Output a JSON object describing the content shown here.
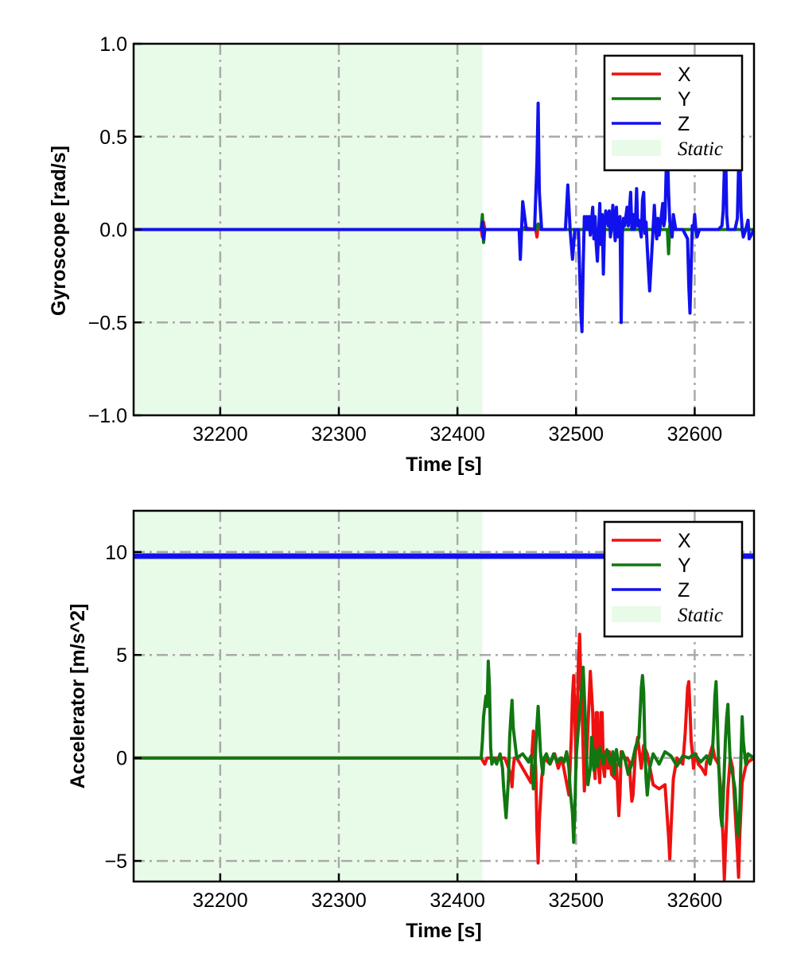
{
  "colors": {
    "x": "#ee1111",
    "y": "#117711",
    "z": "#1111ee",
    "static_region": "#e8fbe8",
    "grid": "#aaaaaa"
  },
  "chart_data": [
    {
      "type": "line",
      "xlabel": "Time [s]",
      "ylabel": "Gyroscope [rad/s]",
      "xlim": [
        32127,
        32650
      ],
      "ylim": [
        -1.0,
        1.0
      ],
      "xticks": [
        32200,
        32300,
        32400,
        32500,
        32600
      ],
      "xtick_labels": [
        "32200",
        "32300",
        "32400",
        "32500",
        "32600"
      ],
      "yticks": [
        1.0,
        0.5,
        0.0,
        -0.5,
        -1.0
      ],
      "ytick_labels": [
        "1.0",
        "0.5",
        "0.0",
        "−0.5",
        "−1.0"
      ],
      "grid": true,
      "legend": "top-right",
      "static_region": {
        "label": "Static",
        "x": [
          32127,
          32421
        ]
      },
      "series": [
        {
          "name": "X",
          "x": [
            32127,
            32420,
            32421,
            32422,
            32423,
            32455,
            32456,
            32466,
            32467,
            32468,
            32470,
            32495,
            32500,
            32505,
            32520,
            32540,
            32560,
            32580,
            32600,
            32625,
            32650
          ],
          "y": [
            0,
            0,
            -0.04,
            0.04,
            0,
            0,
            0.01,
            0,
            -0.04,
            0.02,
            0,
            0,
            0,
            0,
            0,
            0,
            0,
            0,
            0,
            0,
            0
          ]
        },
        {
          "name": "Y",
          "x": [
            32127,
            32420,
            32421,
            32422,
            32423,
            32455,
            32460,
            32466,
            32468,
            32470,
            32495,
            32520,
            32540,
            32560,
            32577,
            32578,
            32579,
            32580,
            32600,
            32625,
            32650
          ],
          "y": [
            0,
            0,
            0.08,
            -0.07,
            0,
            0,
            0,
            0,
            0.03,
            0,
            0,
            0,
            0,
            0,
            0,
            -0.13,
            0.02,
            0,
            0,
            0,
            0
          ]
        },
        {
          "name": "Z",
          "x": [
            32127,
            32420,
            32421,
            32422,
            32423,
            32452,
            32453,
            32455,
            32456,
            32458,
            32465,
            32467,
            32468,
            32469,
            32471,
            32491,
            32493,
            32495,
            32496,
            32497,
            32499,
            32502,
            32504,
            32505,
            32506,
            32507,
            32508,
            32509,
            32510,
            32511,
            32512,
            32514,
            32515,
            32516,
            32517,
            32518,
            32520,
            32521,
            32522,
            32523,
            32524,
            32525,
            32527,
            32528,
            32529,
            32530,
            32531,
            32532,
            32533,
            32534,
            32535,
            32536,
            32537,
            32538,
            32539,
            32540,
            32541,
            32543,
            32544,
            32546,
            32547,
            32548,
            32549,
            32550,
            32551,
            32552,
            32553,
            32554,
            32555,
            32556,
            32557,
            32558,
            32559,
            32560,
            32562,
            32565,
            32566,
            32567,
            32568,
            32569,
            32570,
            32571,
            32573,
            32574,
            32575,
            32576,
            32577,
            32578,
            32579,
            32580,
            32581,
            32582,
            32584,
            32590,
            32594,
            32595,
            32596,
            32597,
            32598,
            32599,
            32600,
            32601,
            32602,
            32604,
            32620,
            32623,
            32624,
            32625,
            32626,
            32627,
            32628,
            32630,
            32634,
            32636,
            32637,
            32638,
            32639,
            32640,
            32641,
            32643,
            32645,
            32646,
            32650
          ],
          "y": [
            0,
            0,
            0.04,
            -0.05,
            0,
            0,
            -0.16,
            0.15,
            0.1,
            0,
            0,
            0.36,
            0.68,
            0.2,
            0,
            0,
            0.24,
            0,
            -0.08,
            -0.16,
            0,
            0,
            -0.45,
            -0.55,
            -0.2,
            0.07,
            0,
            0.07,
            0,
            0.07,
            -0.03,
            0.12,
            -0.05,
            0.07,
            -0.08,
            -0.17,
            0.14,
            -0.08,
            0.08,
            -0.24,
            0.02,
            0.1,
            0.02,
            0.1,
            -0.04,
            0.02,
            0.13,
            0.02,
            -0.06,
            0.12,
            -0.04,
            -0.02,
            0.07,
            -0.5,
            -0.02,
            0.06,
            0.02,
            0.12,
            0.02,
            0.2,
            0,
            0.08,
            0,
            0.03,
            0.22,
            0.02,
            0.05,
            0,
            -0.04,
            0.16,
            0.2,
            -0.02,
            0.04,
            -0.1,
            -0.33,
            0.01,
            0.13,
            0.01,
            -0.05,
            0.06,
            -0.03,
            0.02,
            0.14,
            0.02,
            0.06,
            0.32,
            0.44,
            0.2,
            0.04,
            0.01,
            -0.04,
            0.08,
            0,
            0,
            -0.05,
            -0.3,
            -0.45,
            -0.2,
            0.02,
            0,
            0.08,
            0,
            -0.04,
            0,
            0,
            0.02,
            0.1,
            0.32,
            0.46,
            0.08,
            0,
            0,
            0,
            0.06,
            0.33,
            0.46,
            0.1,
            0,
            -0.04,
            0,
            0.05,
            -0.05,
            0
          ]
        }
      ]
    },
    {
      "type": "line",
      "xlabel": "Time [s]",
      "ylabel": "Accelerator [m/s^2]",
      "xlim": [
        32127,
        32650
      ],
      "ylim": [
        -6.0,
        12.0
      ],
      "xticks": [
        32200,
        32300,
        32400,
        32500,
        32600
      ],
      "xtick_labels": [
        "32200",
        "32300",
        "32400",
        "32500",
        "32600"
      ],
      "yticks": [
        10,
        5,
        0,
        -5
      ],
      "ytick_labels": [
        "10",
        "5",
        "0",
        "−5"
      ],
      "grid": true,
      "legend": "top-right",
      "static_region": {
        "label": "Static",
        "x": [
          32127,
          32421
        ]
      },
      "series": [
        {
          "name": "X",
          "x": [
            32127,
            32420,
            32423,
            32425,
            32440,
            32445,
            32446,
            32447,
            32448,
            32450,
            32462,
            32463,
            32464,
            32466,
            32467,
            32468,
            32469,
            32471,
            32473,
            32478,
            32482,
            32485,
            32488,
            32494,
            32496,
            32497,
            32498,
            32499,
            32500,
            32501,
            32502,
            32503,
            32504,
            32505,
            32506,
            32507,
            32508,
            32509,
            32510,
            32512,
            32514,
            32515,
            32516,
            32517,
            32518,
            32519,
            32520,
            32521,
            32522,
            32523,
            32524,
            32525,
            32526,
            32527,
            32528,
            32530,
            32533,
            32534,
            32535,
            32536,
            32537,
            32538,
            32540,
            32543,
            32545,
            32546,
            32547,
            32548,
            32549,
            32550,
            32552,
            32555,
            32557,
            32560,
            32565,
            32570,
            32575,
            32578,
            32579,
            32580,
            32582,
            32585,
            32590,
            32592,
            32594,
            32595,
            32596,
            32597,
            32598,
            32599,
            32600,
            32601,
            32603,
            32606,
            32609,
            32610,
            32612,
            32615,
            32617,
            32620,
            32622,
            32624,
            32625,
            32626,
            32628,
            32630,
            32632,
            32634,
            32636,
            32637,
            32638,
            32640,
            32643,
            32645,
            32650
          ],
          "y": [
            0,
            0,
            -0.3,
            0,
            0,
            -0.8,
            -1.4,
            -0.5,
            0,
            0,
            -1.2,
            0.4,
            1.3,
            -0.5,
            -3.5,
            -5.1,
            -3.1,
            -1.0,
            0,
            -0.3,
            0.2,
            -0.5,
            0,
            -1.8,
            1.0,
            3.0,
            4.0,
            2.0,
            -0.5,
            2.2,
            4.7,
            6.0,
            3.5,
            2.5,
            0.4,
            -1.6,
            -0.5,
            0,
            1.5,
            4.2,
            2.2,
            -0.3,
            -1.0,
            2.2,
            2.2,
            -0.5,
            -1.2,
            2.2,
            2.2,
            -0.5,
            -0.9,
            0.3,
            0.1,
            -0.5,
            0.3,
            -0.8,
            -1.0,
            -0.3,
            -1.5,
            -2.8,
            -1.8,
            0.3,
            0,
            0,
            -0.2,
            -1.3,
            -2.1,
            -1.8,
            -0.8,
            0.3,
            1.0,
            -0.5,
            0.6,
            0.2,
            -1.3,
            -1.5,
            -1.3,
            -3.8,
            -4.9,
            -3.5,
            -1.0,
            0,
            -0.3,
            1.2,
            3.4,
            3.7,
            2.4,
            0.8,
            0.3,
            -0.5,
            0,
            0.2,
            -0.3,
            -0.5,
            -0.8,
            -0.2,
            0,
            0.6,
            0,
            -0.3,
            -1.5,
            -4.0,
            -5.9,
            -4.3,
            -1.5,
            0,
            -0.5,
            -2.5,
            -4.5,
            -5.8,
            -3.8,
            -1.2,
            -0.4,
            -0.2,
            0
          ]
        },
        {
          "name": "Y",
          "x": [
            32127,
            32420,
            32421,
            32422,
            32424,
            32425,
            32426,
            32427,
            32428,
            32429,
            32431,
            32433,
            32436,
            32438,
            32439,
            32441,
            32443,
            32444,
            32445,
            32446,
            32447,
            32450,
            32455,
            32460,
            32462,
            32463,
            32464,
            32465,
            32466,
            32467,
            32468,
            32470,
            32471,
            32472,
            32473,
            32475,
            32478,
            32481,
            32484,
            32487,
            32490,
            32492,
            32494,
            32495,
            32497,
            32498,
            32499,
            32500,
            32502,
            32505,
            32506,
            32507,
            32508,
            32509,
            32510,
            32512,
            32513,
            32514,
            32515,
            32516,
            32517,
            32518,
            32520,
            32523,
            32526,
            32529,
            32531,
            32532,
            32533,
            32534,
            32535,
            32537,
            32539,
            32541,
            32544,
            32547,
            32550,
            32553,
            32554,
            32555,
            32556,
            32557,
            32558,
            32559,
            32560,
            32562,
            32565,
            32570,
            32575,
            32580,
            32585,
            32590,
            32595,
            32600,
            32605,
            32610,
            32613,
            32615,
            32616,
            32617,
            32618,
            32619,
            32620,
            32621,
            32622,
            32623,
            32624,
            32625,
            32626,
            32627,
            32628,
            32629,
            32630,
            32632,
            32634,
            32635,
            32636,
            32637,
            32638,
            32639,
            32640,
            32641,
            32643,
            32645,
            32650
          ],
          "y": [
            0,
            0,
            0.8,
            2.0,
            3.0,
            2.5,
            4.7,
            3.5,
            0.5,
            -0.3,
            0,
            -0.3,
            0.2,
            -0.5,
            -1.5,
            -2.9,
            -1.0,
            1.0,
            2.0,
            2.8,
            1.5,
            0,
            0.2,
            -0.2,
            0.1,
            -0.5,
            -1.5,
            -1.0,
            0.5,
            1.6,
            2.5,
            0.3,
            -0.3,
            -0.8,
            0,
            0.2,
            -0.3,
            0.2,
            -0.2,
            0,
            -0.2,
            0.3,
            -0.5,
            -1.5,
            -2.7,
            -4.1,
            -2.5,
            0,
            1.5,
            3.5,
            4.4,
            3.0,
            1.5,
            -0.3,
            -1.3,
            -0.5,
            1.0,
            0.3,
            -0.6,
            0.4,
            0.2,
            -0.4,
            0.5,
            -0.3,
            0.4,
            -0.3,
            0.3,
            -0.8,
            -0.2,
            0.4,
            0,
            -0.4,
            0.3,
            0,
            -0.8,
            -0.3,
            0.5,
            1.0,
            2.2,
            3.4,
            4.0,
            3.2,
            0.5,
            -1.0,
            -1.8,
            -0.5,
            0.2,
            -0.3,
            0.3,
            0.1,
            -0.4,
            0.1,
            0,
            0.2,
            -0.2,
            0.1,
            -0.3,
            0.3,
            1.5,
            3.0,
            3.7,
            2.0,
            0,
            -1.3,
            -2.8,
            -3.3,
            -2.1,
            -0.5,
            1.0,
            2.0,
            2.6,
            1.0,
            -0.3,
            -0.8,
            -1.5,
            -2.5,
            -3.5,
            -3.8,
            -2.5,
            0,
            2.0,
            0.8,
            -0.3,
            0.2,
            0
          ]
        },
        {
          "name": "Z",
          "x": [
            32127,
            32650
          ],
          "y": [
            9.8,
            9.8
          ]
        }
      ]
    }
  ]
}
